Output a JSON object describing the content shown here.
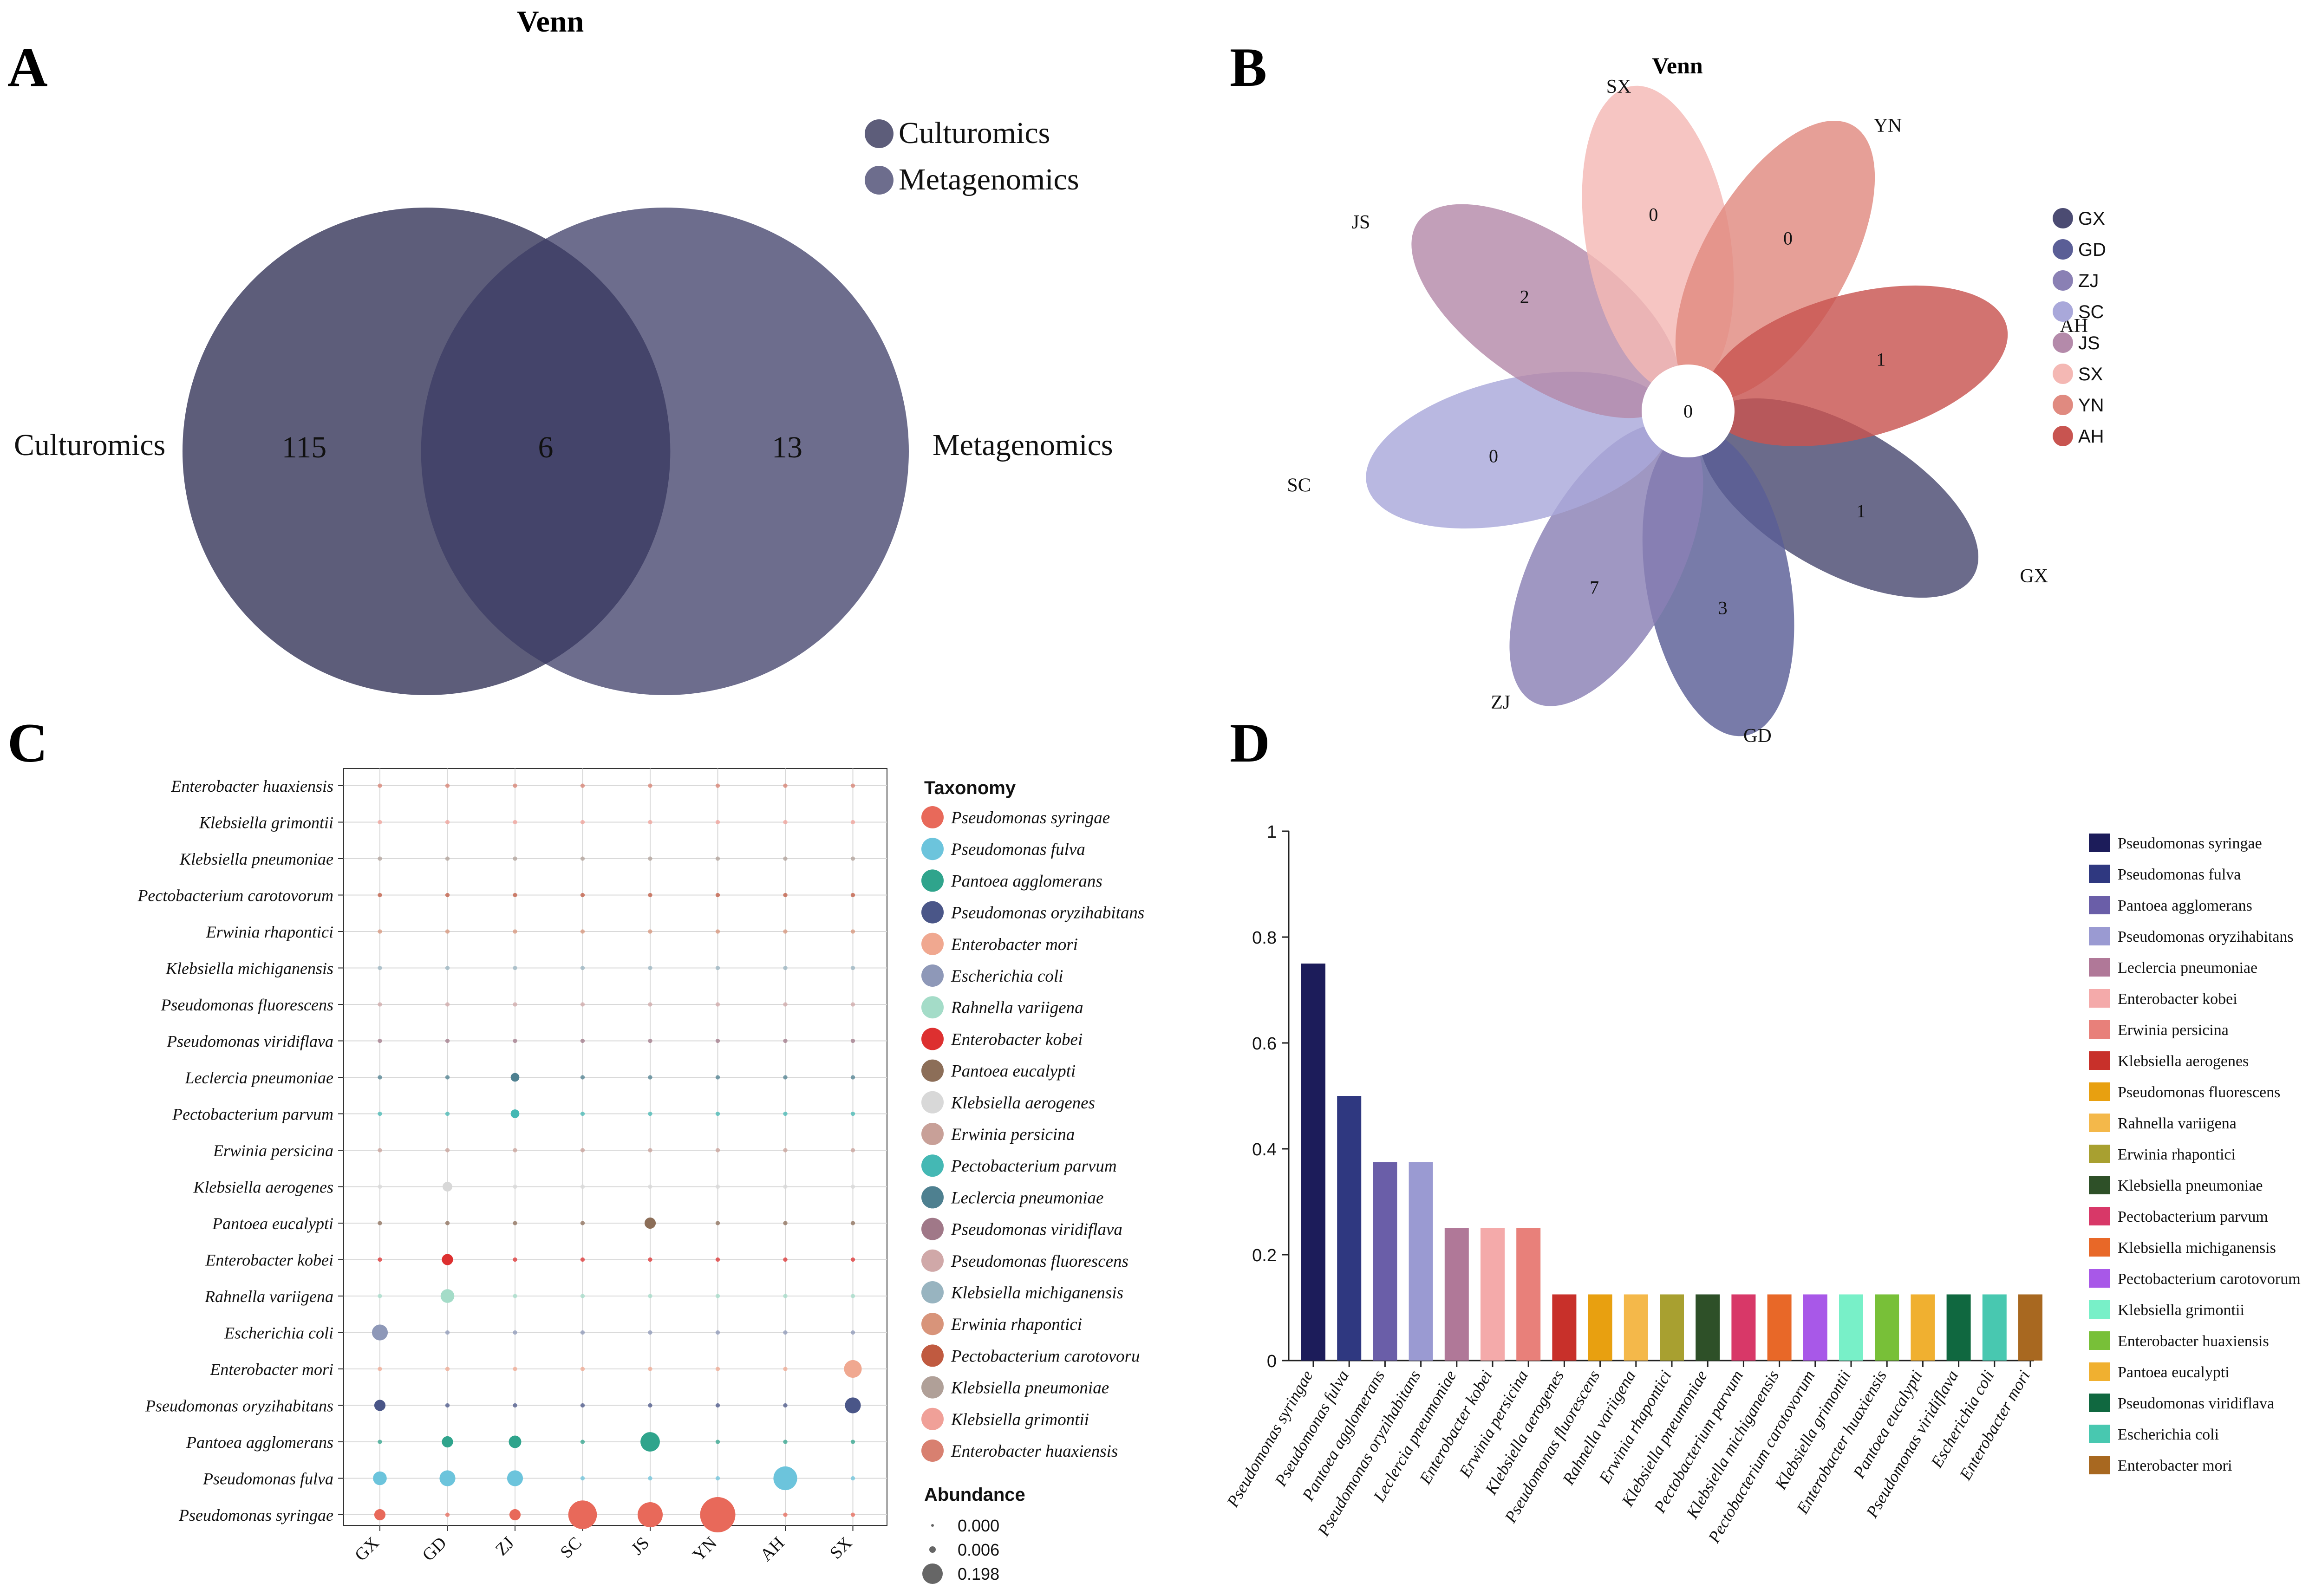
{
  "colors": {
    "venn_culturomics": "#5d5d7a",
    "venn_metagenomics": "#6d6d8d",
    "venn_overlap": "#44446a",
    "text": "#111111"
  },
  "panels": {
    "a": "A",
    "b": "B",
    "c": "C",
    "d": "D"
  },
  "chart_data": [
    {
      "type": "venn",
      "panel": "A",
      "title": "Venn",
      "sets": [
        {
          "name": "Culturomics",
          "side_label": "Culturomics",
          "only": 115,
          "color": "#5d5d7a"
        },
        {
          "name": "Metagenomics",
          "side_label": "Metagenomics",
          "only": 13,
          "color": "#6d6d8d"
        }
      ],
      "intersection": 6,
      "legend": [
        "Culturomics",
        "Metagenomics"
      ]
    },
    {
      "type": "venn-flower",
      "panel": "B",
      "title": "Venn",
      "center_value": 0,
      "petals": [
        {
          "name": "GX",
          "value": 1,
          "angle": 30,
          "color": "#4b4b72"
        },
        {
          "name": "GD",
          "value": 3,
          "angle": 80,
          "color": "#5a5e96"
        },
        {
          "name": "ZJ",
          "value": 7,
          "angle": 118,
          "color": "#8a80b4"
        },
        {
          "name": "SC",
          "value": 0,
          "angle": 167,
          "color": "#a9a8da"
        },
        {
          "name": "JS",
          "value": 2,
          "angle": 215,
          "color": "#b48aaa"
        },
        {
          "name": "SX",
          "value": 0,
          "angle": 260,
          "color": "#f4b8b4"
        },
        {
          "name": "YN",
          "value": 0,
          "angle": 300,
          "color": "#e08a80"
        },
        {
          "name": "AH",
          "value": 1,
          "angle": 345,
          "color": "#c85450"
        }
      ],
      "legend": [
        "GX",
        "GD",
        "ZJ",
        "SC",
        "JS",
        "SX",
        "YN",
        "AH"
      ]
    },
    {
      "type": "bubble",
      "panel": "C",
      "legend_title": "Taxonomy",
      "size_title": "Abundance",
      "size_legend": [
        {
          "label": "0.000",
          "value": 0.0
        },
        {
          "label": "0.006",
          "value": 0.006
        },
        {
          "label": "0.198",
          "value": 0.198
        }
      ],
      "x_categories": [
        "GX",
        "GD",
        "ZJ",
        "SC",
        "JS",
        "YN",
        "AH",
        "SX"
      ],
      "y_categories": [
        "Enterobacter huaxiensis",
        "Klebsiella grimontii",
        "Klebsiella pneumoniae",
        "Pectobacterium carotovorum",
        "Erwinia rhapontici",
        "Klebsiella michiganensis",
        "Pseudomonas fluorescens",
        "Pseudomonas viridiflava",
        "Leclercia pneumoniae",
        "Pectobacterium parvum",
        "Erwinia persicina",
        "Klebsiella aerogenes",
        "Pantoea eucalypti",
        "Enterobacter kobei",
        "Rahnella variigena",
        "Escherichia coli",
        "Enterobacter mori",
        "Pseudomonas oryzihabitans",
        "Pantoea agglomerans",
        "Pseudomonas fulva",
        "Pseudomonas syringae"
      ],
      "taxonomy_legend": [
        {
          "name": "Pseudomonas syringae",
          "color": "#e8695a"
        },
        {
          "name": "Pseudomonas fulva",
          "color": "#6cc4dc"
        },
        {
          "name": "Pantoea agglomerans",
          "color": "#2fa48c"
        },
        {
          "name": "Pseudomonas oryzihabitans",
          "color": "#4a5688"
        },
        {
          "name": "Enterobacter mori",
          "color": "#f0a890"
        },
        {
          "name": "Escherichia coli",
          "color": "#8e98b8"
        },
        {
          "name": "Rahnella variigena",
          "color": "#a4dcc8"
        },
        {
          "name": "Enterobacter kobei",
          "color": "#dd3030"
        },
        {
          "name": "Pantoea eucalypti",
          "color": "#8c6e58"
        },
        {
          "name": "Klebsiella aerogenes",
          "color": "#d8d8d8"
        },
        {
          "name": "Erwinia persicina",
          "color": "#c8a098"
        },
        {
          "name": "Pectobacterium parvum",
          "color": "#44b8b4"
        },
        {
          "name": "Leclercia pneumoniae",
          "color": "#4e8090"
        },
        {
          "name": "Pseudomonas viridiflava",
          "color": "#a07888"
        },
        {
          "name": "Pseudomonas fluorescens",
          "color": "#d0a8a8"
        },
        {
          "name": "Klebsiella michiganensis",
          "color": "#98b4c0"
        },
        {
          "name": "Erwinia rhapontici",
          "color": "#d8947a"
        },
        {
          "name": "Pectobacterium carotovorum",
          "color": "#c05a40"
        },
        {
          "name": "Klebsiella pneumoniae",
          "color": "#b0a098"
        },
        {
          "name": "Klebsiella grimontii",
          "color": "#f0a098"
        },
        {
          "name": "Enterobacter huaxiensis",
          "color": "#d88070"
        }
      ],
      "taxonomy_legend_display": [
        "Pseudomonas syringae",
        "Pseudomonas fulva",
        "Pantoea agglomerans",
        "Pseudomonas oryzihabitans",
        "Enterobacter mori",
        "Escherichia coli",
        "Rahnella variigena",
        "Enterobacter kobei",
        "Pantoea eucalypti",
        "Klebsiella aerogenes",
        "Erwinia persicina",
        "Pectobacterium parvum",
        "Leclercia pneumoniae",
        "Pseudomonas viridiflava",
        "Pseudomonas fluorescens",
        "Klebsiella michiganensis",
        "Erwinia rhapontici",
        "Pectobacterium carotovoru",
        "Klebsiella pneumoniae",
        "Klebsiella grimontii",
        "Enterobacter huaxiensis"
      ],
      "highlights": [
        {
          "species": "Pseudomonas syringae",
          "site": "SC",
          "value": 0.13
        },
        {
          "species": "Pseudomonas syringae",
          "site": "JS",
          "value": 0.1
        },
        {
          "species": "Pseudomonas syringae",
          "site": "YN",
          "value": 0.198
        },
        {
          "species": "Pseudomonas syringae",
          "site": "GX",
          "value": 0.02
        },
        {
          "species": "Pseudomonas syringae",
          "site": "ZJ",
          "value": 0.02
        },
        {
          "species": "Pseudomonas fulva",
          "site": "AH",
          "value": 0.09
        },
        {
          "species": "Pseudomonas fulva",
          "site": "GX",
          "value": 0.03
        },
        {
          "species": "Pseudomonas fulva",
          "site": "GD",
          "value": 0.04
        },
        {
          "species": "Pseudomonas fulva",
          "site": "ZJ",
          "value": 0.04
        },
        {
          "species": "Pantoea agglomerans",
          "site": "JS",
          "value": 0.06
        },
        {
          "species": "Pantoea agglomerans",
          "site": "GD",
          "value": 0.02
        },
        {
          "species": "Pantoea agglomerans",
          "site": "ZJ",
          "value": 0.025
        },
        {
          "species": "Pseudomonas oryzihabitans",
          "site": "SX",
          "value": 0.04
        },
        {
          "species": "Pseudomonas oryzihabitans",
          "site": "GX",
          "value": 0.02
        },
        {
          "species": "Enterobacter mori",
          "site": "SX",
          "value": 0.05
        },
        {
          "species": "Escherichia coli",
          "site": "GX",
          "value": 0.04
        },
        {
          "species": "Rahnella variigena",
          "site": "GD",
          "value": 0.03
        },
        {
          "species": "Enterobacter kobei",
          "site": "GD",
          "value": 0.02
        },
        {
          "species": "Pantoea eucalypti",
          "site": "JS",
          "value": 0.02
        },
        {
          "species": "Klebsiella aerogenes",
          "site": "GD",
          "value": 0.015
        },
        {
          "species": "Pectobacterium parvum",
          "site": "ZJ",
          "value": 0.012
        },
        {
          "species": "Leclercia pneumoniae",
          "site": "ZJ",
          "value": 0.012
        }
      ]
    },
    {
      "type": "bar",
      "panel": "D",
      "ylim": [
        0,
        1
      ],
      "yticks": [
        "0",
        "0.2",
        "0.4",
        "0.6",
        "0.8",
        "1"
      ],
      "categories": [
        "Pseudomonas syringae",
        "Pseudomonas fulva",
        "Pantoea agglomerans",
        "Pseudomonas oryzihabitans",
        "Leclercia pneumoniae",
        "Enterobacter kobei",
        "Erwinia persicina",
        "Klebsiella aerogenes",
        "Pseudomonas fluorescens",
        "Rahnella variigena",
        "Erwinia rhapontici",
        "Klebsiella pneumoniae",
        "Pectobacterium parvum",
        "Klebsiella michiganensis",
        "Pectobacterium carotovorum",
        "Klebsiella grimontii",
        "Enterobacter huaxiensis",
        "Pantoea eucalypti",
        "Pseudomonas viridiflava",
        "Escherichia coli",
        "Enterobacter mori"
      ],
      "values": [
        0.75,
        0.5,
        0.375,
        0.375,
        0.25,
        0.25,
        0.25,
        0.125,
        0.125,
        0.125,
        0.125,
        0.125,
        0.125,
        0.125,
        0.125,
        0.125,
        0.125,
        0.125,
        0.125,
        0.125,
        0.125
      ],
      "colors": [
        "#1c1c5a",
        "#2f3880",
        "#6a5ea8",
        "#9a9ad2",
        "#b07898",
        "#f4aaaa",
        "#e8807a",
        "#c8302a",
        "#e8a010",
        "#f4b84a",
        "#a8a030",
        "#2e5028",
        "#d83868",
        "#e86828",
        "#a858e8",
        "#78f0c8",
        "#78c038",
        "#f0b030",
        "#106840",
        "#48c8b0",
        "#a86820"
      ],
      "legend": [
        "Pseudomonas syringae",
        "Pseudomonas fulva",
        "Pantoea agglomerans",
        "Pseudomonas oryzihabitans",
        "Leclercia pneumoniae",
        "Enterobacter kobei",
        "Erwinia persicina",
        "Klebsiella aerogenes",
        "Pseudomonas fluorescens",
        "Rahnella variigena",
        "Erwinia rhapontici",
        "Klebsiella pneumoniae",
        "Pectobacterium parvum",
        "Klebsiella michiganensis",
        "Pectobacterium carotovorum",
        "Klebsiella grimontii",
        "Enterobacter huaxiensis",
        "Pantoea eucalypti",
        "Pseudomonas viridiflava",
        "Escherichia coli",
        "Enterobacter mori"
      ]
    }
  ]
}
